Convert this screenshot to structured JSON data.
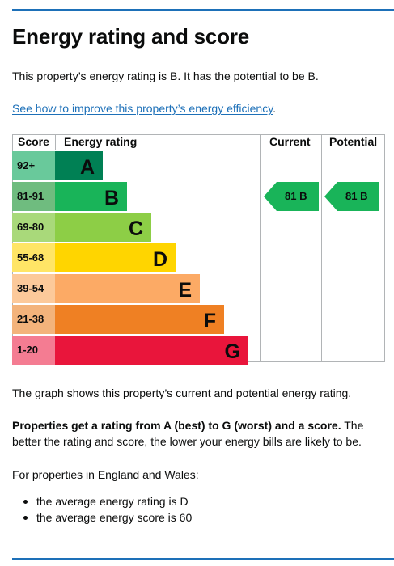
{
  "heading": "Energy rating and score",
  "summary": "This property’s energy rating is B. It has the potential to be B.",
  "improve_link": "See how to improve this property’s energy efficiency",
  "improve_link_suffix": ".",
  "graph": {
    "headers": {
      "score": "Score",
      "rating": "Energy rating",
      "current": "Current",
      "potential": "Potential"
    },
    "bands": [
      {
        "score": "92+",
        "letter": "A",
        "color": "#008054",
        "label_color": "#0b0c0c"
      },
      {
        "score": "81-91",
        "letter": "B",
        "color": "#19b459",
        "label_color": "#0b0c0c"
      },
      {
        "score": "69-80",
        "letter": "C",
        "color": "#8dce46",
        "label_color": "#0b0c0c"
      },
      {
        "score": "55-68",
        "letter": "D",
        "color": "#ffd500",
        "label_color": "#0b0c0c"
      },
      {
        "score": "39-54",
        "letter": "E",
        "color": "#fcaa65",
        "label_color": "#0b0c0c"
      },
      {
        "score": "21-38",
        "letter": "F",
        "color": "#ef8023",
        "label_color": "#0b0c0c"
      },
      {
        "score": "1-20",
        "letter": "G",
        "color": "#e9153b",
        "label_color": "#0b0c0c"
      }
    ],
    "current": {
      "text": "81 B",
      "score": 81,
      "band": "B",
      "color": "#19b459"
    },
    "potential": {
      "text": "81 B",
      "score": 81,
      "band": "B",
      "color": "#19b459"
    }
  },
  "graph_caption": "The graph shows this property’s current and potential energy rating.",
  "rating_info_bold": "Properties get a rating from A (best) to G (worst) and a score.",
  "rating_info_rest": " The better the rating and score, the lower your energy bills are likely to be.",
  "region_text": "For properties in England and Wales:",
  "averages": [
    "the average energy rating is D",
    "the average energy score is 60"
  ]
}
